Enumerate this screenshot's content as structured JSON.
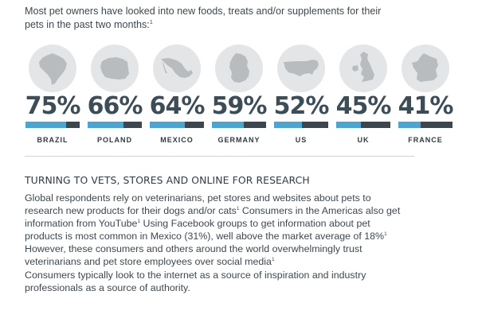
{
  "intro": {
    "text": "Most pet owners have looked into new foods, treats and/or supplements for their pets in the past two months:",
    "footnote": "1"
  },
  "colors": {
    "bar_fill": "#4aa6d0",
    "bar_track": "#3c464e",
    "map_circle": "#e3e5e7",
    "map_shape": "#b8bcbf"
  },
  "stats": [
    {
      "country": "BRAZIL",
      "percent_label": "75%",
      "value": 75,
      "map_icon": "brazil-map-icon"
    },
    {
      "country": "POLAND",
      "percent_label": "66%",
      "value": 66,
      "map_icon": "poland-map-icon"
    },
    {
      "country": "MEXICO",
      "percent_label": "64%",
      "value": 64,
      "map_icon": "mexico-map-icon"
    },
    {
      "country": "GERMANY",
      "percent_label": "59%",
      "value": 59,
      "map_icon": "germany-map-icon"
    },
    {
      "country": "US",
      "percent_label": "52%",
      "value": 52,
      "map_icon": "us-map-icon"
    },
    {
      "country": "UK",
      "percent_label": "45%",
      "value": 45,
      "map_icon": "uk-map-icon"
    },
    {
      "country": "FRANCE",
      "percent_label": "41%",
      "value": 41,
      "map_icon": "france-map-icon"
    }
  ],
  "section": {
    "title": "TURNING TO VETS, STORES AND ONLINE FOR RESEARCH",
    "para1": {
      "part1": "Global respondents rely on veterinarians, pet stores and websites about pets to research new products for their dogs and/or cats",
      "fn1": "1",
      "part2": " Consumers in the Americas also get information from YouTube",
      "fn2": "1",
      "part3": " Using Facebook groups to get information about pet products is most common in Mexico (31%), well above the market average of 18%",
      "fn3": "1",
      "part4": " However, these consumers and others around the world overwhelmingly trust veterinarians and pet store employees over social media",
      "fn4": "1"
    },
    "para2": "Consumers typically look to the internet as a source of inspiration and industry professionals as a source of authority."
  }
}
